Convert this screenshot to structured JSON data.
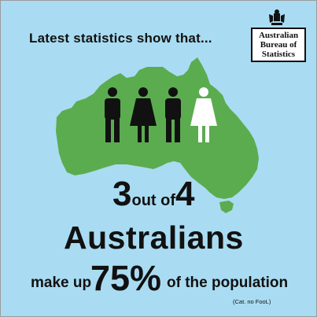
{
  "headline": "Latest statistics show that...",
  "logo": {
    "line1": "Australian",
    "line2": "Bureau of",
    "line3": "Statistics"
  },
  "stat": {
    "numerator": "3",
    "connector": "out of",
    "denominator": "4",
    "noun": "Australians",
    "prefix": "make up",
    "percent": "75%",
    "suffix": "of the population",
    "citation": "(Cat. no FooL)"
  },
  "figures": [
    {
      "kind": "male",
      "color": "#111111"
    },
    {
      "kind": "female",
      "color": "#111111"
    },
    {
      "kind": "male",
      "color": "#111111"
    },
    {
      "kind": "female",
      "color": "#ffffff"
    }
  ],
  "colors": {
    "background": "#a9dcf2",
    "land": "#5bac4f",
    "text": "#111111"
  }
}
